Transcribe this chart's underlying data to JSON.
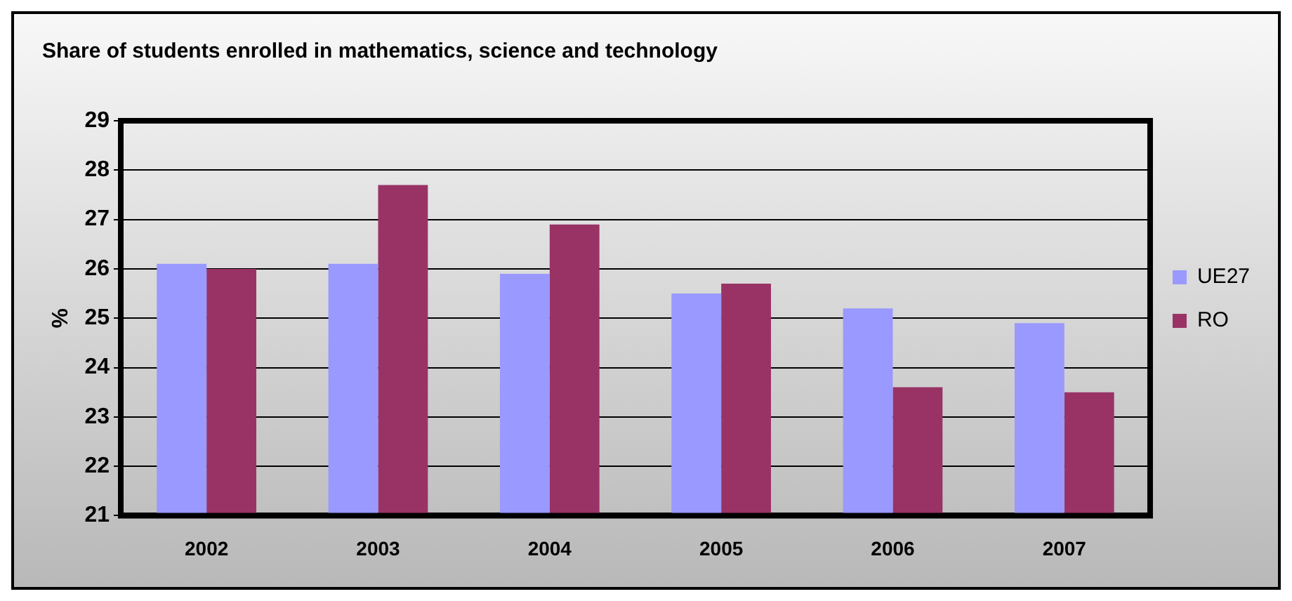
{
  "chart_data": {
    "type": "bar",
    "title": "Share of students enrolled in mathematics, science and technology",
    "ylabel": "%",
    "categories": [
      "2002",
      "2003",
      "2004",
      "2005",
      "2006",
      "2007"
    ],
    "series": [
      {
        "name": "UE27",
        "color": "#9999ff",
        "values": [
          26.1,
          26.1,
          25.9,
          25.5,
          25.2,
          24.9
        ]
      },
      {
        "name": "RO",
        "color": "#993366",
        "values": [
          26.0,
          27.7,
          26.9,
          25.7,
          23.6,
          23.5
        ]
      }
    ],
    "ylim": [
      21,
      29
    ],
    "yticks": [
      21,
      22,
      23,
      24,
      25,
      26,
      27,
      28,
      29
    ],
    "grid": "y",
    "legend": "right"
  }
}
